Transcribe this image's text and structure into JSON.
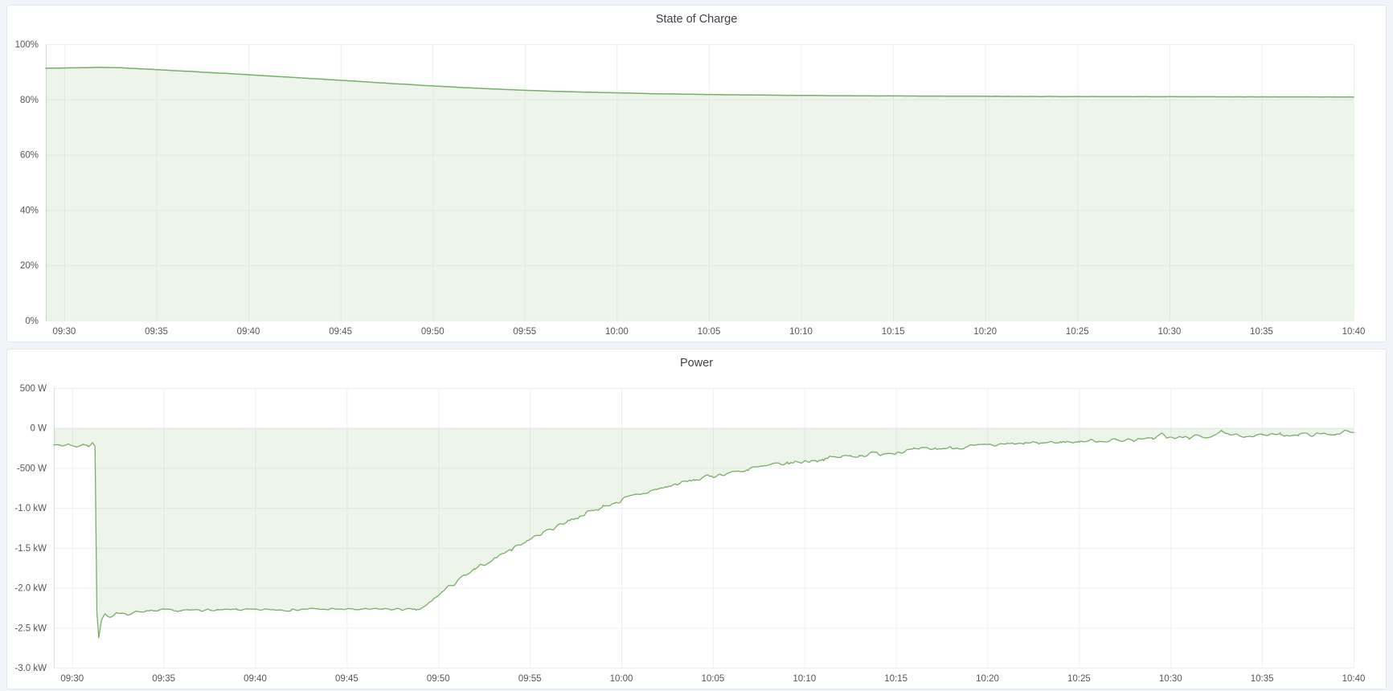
{
  "page": {
    "background": "#f1f4f8",
    "panel_border": "#e3e6ea",
    "grid_color": "#edeff1",
    "axis_color": "#d8dbdf",
    "tick_text_color": "#54575e",
    "title_text_color": "#3e4148"
  },
  "chart_data": [
    {
      "type": "area",
      "title": "State of Charge",
      "xlabel": "",
      "ylabel": "",
      "unit": "percent",
      "grid": true,
      "legend": "none",
      "x": {
        "min": -1,
        "max": 70,
        "ticks": [
          {
            "t": 0,
            "label": "09:30"
          },
          {
            "t": 5,
            "label": "09:35"
          },
          {
            "t": 10,
            "label": "09:40"
          },
          {
            "t": 15,
            "label": "09:45"
          },
          {
            "t": 20,
            "label": "09:50"
          },
          {
            "t": 25,
            "label": "09:55"
          },
          {
            "t": 30,
            "label": "10:00"
          },
          {
            "t": 35,
            "label": "10:05"
          },
          {
            "t": 40,
            "label": "10:10"
          },
          {
            "t": 45,
            "label": "10:15"
          },
          {
            "t": 50,
            "label": "10:20"
          },
          {
            "t": 55,
            "label": "10:25"
          },
          {
            "t": 60,
            "label": "10:30"
          },
          {
            "t": 65,
            "label": "10:35"
          },
          {
            "t": 70,
            "label": "10:40"
          }
        ]
      },
      "y": {
        "min": 0,
        "max": 100,
        "ticks": [
          {
            "value": 0,
            "label": "0%"
          },
          {
            "value": 20,
            "label": "20%"
          },
          {
            "value": 40,
            "label": "40%"
          },
          {
            "value": 60,
            "label": "60%"
          },
          {
            "value": 80,
            "label": "80%"
          },
          {
            "value": 100,
            "label": "100%"
          }
        ]
      },
      "series": {
        "name": "state-of-charge",
        "color": "#76af67",
        "fill": "rgba(118,175,103,0.13)",
        "fill_to": 0,
        "line_width": 1.5,
        "seed": 11,
        "noise_amp": [
          [
            -1,
            0.04
          ],
          [
            70,
            0.04
          ]
        ],
        "key_points": [
          [
            -1,
            91.3
          ],
          [
            0,
            91.4
          ],
          [
            1,
            91.5
          ],
          [
            2,
            91.6
          ],
          [
            3,
            91.5
          ],
          [
            4,
            91.15
          ],
          [
            5,
            90.8
          ],
          [
            6,
            90.45
          ],
          [
            7,
            90.1
          ],
          [
            8,
            89.7
          ],
          [
            9,
            89.35
          ],
          [
            10,
            88.95
          ],
          [
            11,
            88.55
          ],
          [
            12,
            88.15
          ],
          [
            13,
            87.75
          ],
          [
            14,
            87.35
          ],
          [
            15,
            86.95
          ],
          [
            16,
            86.55
          ],
          [
            17,
            86.1
          ],
          [
            18,
            85.7
          ],
          [
            19,
            85.3
          ],
          [
            20,
            84.9
          ],
          [
            21,
            84.55
          ],
          [
            22,
            84.2
          ],
          [
            23,
            83.9
          ],
          [
            24,
            83.6
          ],
          [
            25,
            83.35
          ],
          [
            26,
            83.1
          ],
          [
            27,
            82.9
          ],
          [
            28,
            82.7
          ],
          [
            29,
            82.55
          ],
          [
            30,
            82.4
          ],
          [
            31,
            82.25
          ],
          [
            32,
            82.1
          ],
          [
            33,
            82.0
          ],
          [
            34,
            81.9
          ],
          [
            35,
            81.8
          ],
          [
            36,
            81.72
          ],
          [
            37,
            81.65
          ],
          [
            38,
            81.58
          ],
          [
            39,
            81.52
          ],
          [
            40,
            81.47
          ],
          [
            42,
            81.38
          ],
          [
            44,
            81.3
          ],
          [
            46,
            81.25
          ],
          [
            48,
            81.2
          ],
          [
            50,
            81.15
          ],
          [
            52,
            81.1
          ],
          [
            54,
            81.07
          ],
          [
            56,
            81.05
          ],
          [
            58,
            81.02
          ],
          [
            60,
            81.0
          ],
          [
            62,
            80.98
          ],
          [
            64,
            80.96
          ],
          [
            66,
            80.94
          ],
          [
            68,
            80.92
          ],
          [
            70,
            80.9
          ]
        ]
      }
    },
    {
      "type": "area",
      "title": "Power",
      "xlabel": "",
      "ylabel": "",
      "unit": "watt",
      "grid": true,
      "legend": "none",
      "x": {
        "min": -1,
        "max": 70,
        "ticks": [
          {
            "t": 0,
            "label": "09:30"
          },
          {
            "t": 5,
            "label": "09:35"
          },
          {
            "t": 10,
            "label": "09:40"
          },
          {
            "t": 15,
            "label": "09:45"
          },
          {
            "t": 20,
            "label": "09:50"
          },
          {
            "t": 25,
            "label": "09:55"
          },
          {
            "t": 30,
            "label": "10:00"
          },
          {
            "t": 35,
            "label": "10:05"
          },
          {
            "t": 40,
            "label": "10:10"
          },
          {
            "t": 45,
            "label": "10:15"
          },
          {
            "t": 50,
            "label": "10:20"
          },
          {
            "t": 55,
            "label": "10:25"
          },
          {
            "t": 60,
            "label": "10:30"
          },
          {
            "t": 65,
            "label": "10:35"
          },
          {
            "t": 70,
            "label": "10:40"
          }
        ]
      },
      "y": {
        "min": -3000,
        "max": 500,
        "ticks": [
          {
            "value": 500,
            "label": "500 W"
          },
          {
            "value": 0,
            "label": "0 W"
          },
          {
            "value": -500,
            "label": "-500 W"
          },
          {
            "value": -1000,
            "label": "-1.0 kW"
          },
          {
            "value": -1500,
            "label": "-1.5 kW"
          },
          {
            "value": -2000,
            "label": "-2.0 kW"
          },
          {
            "value": -2500,
            "label": "-2.5 kW"
          },
          {
            "value": -3000,
            "label": "-3.0 kW"
          }
        ]
      },
      "series": {
        "name": "power",
        "color": "#76af67",
        "fill": "rgba(118,175,103,0.13)",
        "fill_to": 0,
        "line_width": 1.3,
        "seed": 7,
        "noise_amp": [
          [
            -1,
            18
          ],
          [
            1.1,
            18
          ],
          [
            1.6,
            22
          ],
          [
            18.5,
            22
          ],
          [
            19.5,
            42
          ],
          [
            46,
            42
          ],
          [
            50,
            34
          ],
          [
            70,
            34
          ]
        ],
        "key_points": [
          [
            -1,
            -195
          ],
          [
            -0.6,
            -225
          ],
          [
            -0.2,
            -200
          ],
          [
            0.2,
            -235
          ],
          [
            0.6,
            -205
          ],
          [
            0.9,
            -230
          ],
          [
            1.1,
            -175
          ],
          [
            1.25,
            -230
          ],
          [
            1.35,
            -2300
          ],
          [
            1.45,
            -2630
          ],
          [
            1.6,
            -2420
          ],
          [
            1.8,
            -2330
          ],
          [
            2.1,
            -2360
          ],
          [
            2.4,
            -2310
          ],
          [
            3,
            -2340
          ],
          [
            3.5,
            -2290
          ],
          [
            4,
            -2300
          ],
          [
            5,
            -2280
          ],
          [
            6,
            -2290
          ],
          [
            7,
            -2275
          ],
          [
            8,
            -2285
          ],
          [
            9,
            -2270
          ],
          [
            10,
            -2280
          ],
          [
            11,
            -2270
          ],
          [
            12,
            -2275
          ],
          [
            13,
            -2265
          ],
          [
            14,
            -2270
          ],
          [
            15,
            -2268
          ],
          [
            16,
            -2272
          ],
          [
            17,
            -2265
          ],
          [
            18,
            -2270
          ],
          [
            18.8,
            -2280
          ],
          [
            19.3,
            -2240
          ],
          [
            19.8,
            -2130
          ],
          [
            20.3,
            -2040
          ],
          [
            21,
            -1920
          ],
          [
            22,
            -1780
          ],
          [
            23,
            -1640
          ],
          [
            24,
            -1510
          ],
          [
            25,
            -1390
          ],
          [
            26,
            -1280
          ],
          [
            27,
            -1170
          ],
          [
            28,
            -1075
          ],
          [
            29,
            -985
          ],
          [
            30,
            -905
          ],
          [
            31,
            -830
          ],
          [
            32,
            -765
          ],
          [
            33,
            -705
          ],
          [
            34,
            -650
          ],
          [
            35,
            -600
          ],
          [
            36,
            -555
          ],
          [
            37,
            -515
          ],
          [
            38,
            -478
          ],
          [
            39,
            -445
          ],
          [
            40,
            -415
          ],
          [
            41,
            -388
          ],
          [
            42,
            -362
          ],
          [
            43,
            -340
          ],
          [
            44,
            -318
          ],
          [
            45,
            -298
          ],
          [
            46,
            -280
          ],
          [
            47,
            -262
          ],
          [
            48,
            -247
          ],
          [
            49,
            -233
          ],
          [
            50,
            -220
          ],
          [
            51,
            -208
          ],
          [
            52,
            -196
          ],
          [
            53,
            -186
          ],
          [
            54,
            -176
          ],
          [
            55,
            -168
          ],
          [
            56,
            -160
          ],
          [
            57,
            -152
          ],
          [
            58,
            -145
          ],
          [
            59,
            -138
          ],
          [
            59.5,
            -60
          ],
          [
            59.8,
            -130
          ],
          [
            60.5,
            -120
          ],
          [
            61,
            -115
          ],
          [
            62,
            -108
          ],
          [
            62.8,
            -50
          ],
          [
            63.2,
            -100
          ],
          [
            64,
            -95
          ],
          [
            65,
            -88
          ],
          [
            66,
            -85
          ],
          [
            67,
            -80
          ],
          [
            68,
            -78
          ],
          [
            69,
            -72
          ],
          [
            69.5,
            -45
          ],
          [
            70,
            -70
          ]
        ]
      }
    }
  ]
}
